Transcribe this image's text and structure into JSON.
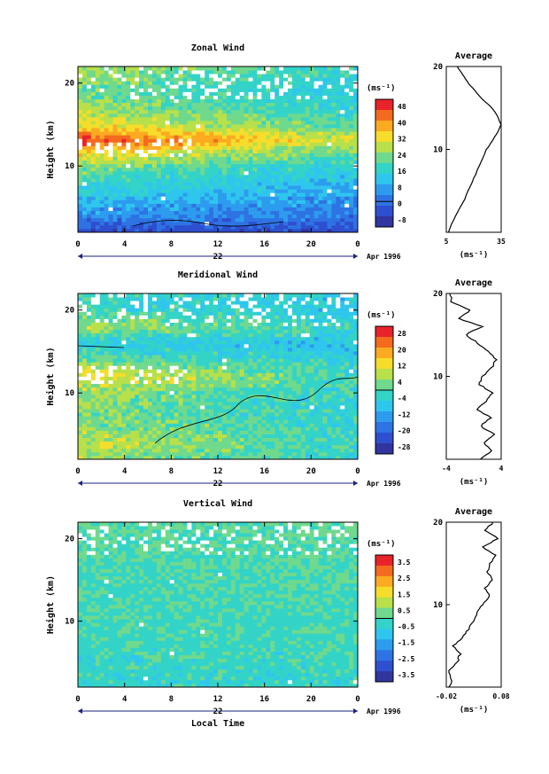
{
  "panels": [
    {
      "title": "Zonal Wind",
      "ylabel": "Height (km)",
      "yticks": [
        "20",
        "10"
      ],
      "xticks": [
        "0",
        "4",
        "8",
        "12",
        "16",
        "20",
        "0"
      ],
      "day_label": "22",
      "date_label": "Apr 1996",
      "xlabel": "",
      "cbar_unit": "(ms⁻¹)",
      "cbar_labels": [
        "48",
        "40",
        "32",
        "24",
        "16",
        "8",
        "0",
        "-8"
      ],
      "avg_title": "Average",
      "avg_xticks": [
        "5",
        "35"
      ],
      "avg_yticks": [
        "20",
        "10"
      ],
      "avg_unit": "(ms⁻¹)"
    },
    {
      "title": "Meridional Wind",
      "ylabel": "Height (km)",
      "yticks": [
        "20",
        "10"
      ],
      "xticks": [
        "0",
        "4",
        "8",
        "12",
        "16",
        "20",
        "0"
      ],
      "day_label": "22",
      "date_label": "Apr 1996",
      "xlabel": "",
      "cbar_unit": "(ms⁻¹)",
      "cbar_labels": [
        "28",
        "20",
        "12",
        "4",
        "-4",
        "-12",
        "-20",
        "-28"
      ],
      "avg_title": "Average",
      "avg_xticks": [
        "-4",
        "4"
      ],
      "avg_yticks": [
        "20",
        "10"
      ],
      "avg_unit": "(ms⁻¹)"
    },
    {
      "title": "Vertical Wind",
      "ylabel": "Height (km)",
      "yticks": [
        "20",
        "10"
      ],
      "xticks": [
        "0",
        "4",
        "8",
        "12",
        "16",
        "20",
        "0"
      ],
      "day_label": "22",
      "date_label": "Apr 1996",
      "xlabel": "Local Time",
      "cbar_unit": "(ms⁻¹)",
      "cbar_labels": [
        "3.5",
        "2.5",
        "1.5",
        "0.5",
        "-0.5",
        "-1.5",
        "-2.5",
        "-3.5"
      ],
      "avg_title": "Average",
      "avg_xticks": [
        "-0.02",
        "0.08"
      ],
      "avg_yticks": [
        "20",
        "10"
      ],
      "avg_unit": "(ms⁻¹)"
    }
  ],
  "colors": {
    "colorbar_ramp": [
      "#e8232a",
      "#f46a1f",
      "#fbaa22",
      "#f6dd2b",
      "#b7e04a",
      "#6fd98d",
      "#33d4c7",
      "#2fc6ee",
      "#2d9cee",
      "#2e73e3",
      "#2e4fcf",
      "#31359f"
    ]
  },
  "chart_data": [
    {
      "type": "heatmap",
      "title": "Zonal Wind",
      "ylabel": "Height (km)",
      "x_range_hours": [
        0,
        24
      ],
      "ylim": [
        2,
        22
      ],
      "color_range": [
        -8,
        52
      ],
      "height_profile_km": [
        2,
        4,
        6,
        8,
        10,
        12,
        13,
        15,
        17,
        19,
        21
      ],
      "height_profile_value": [
        -2,
        8,
        14,
        20,
        26,
        38,
        48,
        34,
        28,
        24,
        28
      ],
      "average": {
        "type": "line",
        "xlim": [
          5,
          35
        ],
        "ylim": [
          0,
          20
        ],
        "y_km": [
          0,
          2,
          4,
          6,
          8,
          10,
          11,
          12,
          13,
          14,
          15,
          16,
          17,
          18,
          19,
          20
        ],
        "x": [
          6,
          10,
          15,
          19,
          23,
          27,
          30,
          33,
          35,
          33,
          30,
          25,
          21,
          17,
          14,
          11
        ]
      }
    },
    {
      "type": "heatmap",
      "title": "Meridional Wind",
      "ylabel": "Height (km)",
      "x_range_hours": [
        0,
        24
      ],
      "ylim": [
        2,
        22
      ],
      "color_range": [
        -32,
        32
      ],
      "height_profile_km": [
        2,
        4,
        6,
        8,
        10,
        12,
        14,
        16,
        18,
        20
      ],
      "height_profile_value": [
        6,
        10,
        5,
        4,
        6,
        14,
        2,
        -6,
        8,
        -2
      ],
      "average": {
        "type": "line",
        "xlim": [
          -4,
          4
        ],
        "ylim": [
          0,
          20
        ],
        "y_km": [
          0,
          1,
          2,
          3,
          4,
          5,
          6,
          7,
          8,
          9,
          10,
          11,
          12,
          13,
          14,
          15,
          16,
          17,
          18,
          19,
          20
        ],
        "x": [
          1.0,
          2.5,
          1.5,
          3.0,
          1.0,
          2.5,
          0.5,
          1.8,
          2.8,
          0.8,
          1.2,
          2.6,
          3.3,
          2.2,
          0.6,
          -1.2,
          1.2,
          -2.2,
          -0.5,
          -3.2,
          -3.5
        ]
      }
    },
    {
      "type": "heatmap",
      "title": "Vertical Wind",
      "ylabel": "Height (km)",
      "xlabel": "Local Time",
      "x_range_hours": [
        0,
        24
      ],
      "ylim": [
        2,
        22
      ],
      "color_range": [
        -4,
        4
      ],
      "height_profile_km": [
        2,
        8,
        14,
        20
      ],
      "height_profile_value": [
        -0.4,
        -0.2,
        -0.1,
        0.1
      ],
      "average": {
        "type": "line",
        "xlim": [
          -0.02,
          0.08
        ],
        "ylim": [
          0,
          20
        ],
        "y_km": [
          0,
          1,
          2,
          3,
          4,
          5,
          6,
          7,
          8,
          9,
          10,
          11,
          12,
          13,
          14,
          15,
          16,
          17,
          18,
          19,
          20
        ],
        "x": [
          -0.015,
          -0.01,
          -0.016,
          0.0,
          0.005,
          -0.008,
          0.01,
          0.02,
          0.03,
          0.035,
          0.045,
          0.06,
          0.05,
          0.065,
          0.055,
          0.06,
          0.07,
          0.045,
          0.075,
          0.05,
          0.065
        ]
      }
    }
  ]
}
